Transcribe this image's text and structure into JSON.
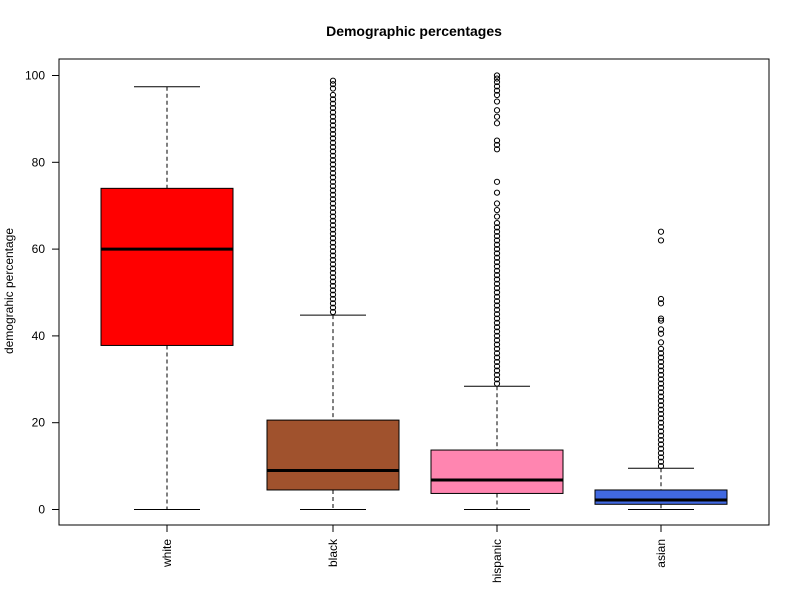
{
  "chart_data": {
    "type": "box",
    "title": "Demographic percentages",
    "xlabel": "",
    "ylabel": "demograhic percentage",
    "ylim": [
      -4,
      104
    ],
    "yticks": [
      0,
      20,
      40,
      60,
      80,
      100
    ],
    "grid": false,
    "categories": [
      "white",
      "black",
      "hispanic",
      "asian"
    ],
    "series": [
      {
        "category": "white",
        "color": "#ff0000",
        "whisker_low": 0,
        "q1": 37.8,
        "median": 60.0,
        "q3": 74.0,
        "whisker_high": 97.4,
        "outliers": []
      },
      {
        "category": "black",
        "color": "#a0522d",
        "whisker_low": 0,
        "q1": 4.5,
        "median": 9.0,
        "q3": 20.6,
        "whisker_high": 44.8,
        "outliers": [
          45.5,
          46.5,
          47.5,
          48.5,
          49.5,
          50.5,
          51.5,
          52.5,
          53.5,
          54.5,
          55.5,
          56.5,
          57.5,
          58.5,
          59.5,
          60.5,
          61.5,
          62.5,
          63.5,
          64.5,
          65.5,
          66.5,
          67.5,
          68.5,
          69.5,
          70.5,
          71.5,
          72.5,
          73.5,
          74.5,
          75.5,
          76.5,
          77.5,
          78.5,
          79.5,
          80.5,
          81.5,
          82.5,
          83.5,
          84.5,
          85.5,
          86.5,
          87.5,
          88.5,
          89.5,
          90.5,
          91.5,
          92.5,
          93.5,
          94.5,
          95.5,
          97.0,
          98.0,
          98.8
        ]
      },
      {
        "category": "hispanic",
        "color": "#ff85b0",
        "whisker_low": 0,
        "q1": 3.7,
        "median": 6.8,
        "q3": 13.7,
        "whisker_high": 28.4,
        "outliers": [
          29.0,
          30.0,
          31.0,
          32.0,
          33.0,
          34.0,
          35.0,
          36.0,
          37.0,
          38.0,
          39.0,
          40.0,
          41.0,
          42.0,
          43.0,
          44.0,
          45.0,
          46.0,
          47.0,
          48.0,
          49.0,
          50.0,
          51.0,
          52.0,
          53.0,
          54.0,
          55.0,
          56.0,
          57.0,
          58.0,
          59.0,
          60.0,
          61.0,
          62.0,
          63.0,
          64.0,
          65.0,
          66.0,
          67.5,
          69.0,
          70.5,
          73.0,
          75.5,
          83.0,
          84.0,
          85.0,
          89.0,
          90.5,
          92.0,
          94.0,
          95.5,
          96.5,
          97.5,
          98.5,
          99.3,
          100.0
        ]
      },
      {
        "category": "asian",
        "color": "#4169e1",
        "whisker_low": 0,
        "q1": 1.2,
        "median": 2.2,
        "q3": 4.5,
        "whisker_high": 9.5,
        "outliers": [
          10.0,
          11.0,
          12.0,
          13.0,
          14.0,
          15.0,
          16.0,
          17.0,
          18.0,
          19.0,
          20.0,
          21.0,
          22.0,
          23.0,
          24.0,
          25.0,
          26.0,
          27.0,
          28.0,
          29.0,
          30.0,
          31.0,
          32.0,
          33.0,
          34.0,
          35.0,
          36.0,
          37.0,
          38.5,
          40.5,
          41.5,
          43.5,
          44.0,
          47.5,
          48.5,
          62.0,
          64.0
        ]
      }
    ]
  }
}
